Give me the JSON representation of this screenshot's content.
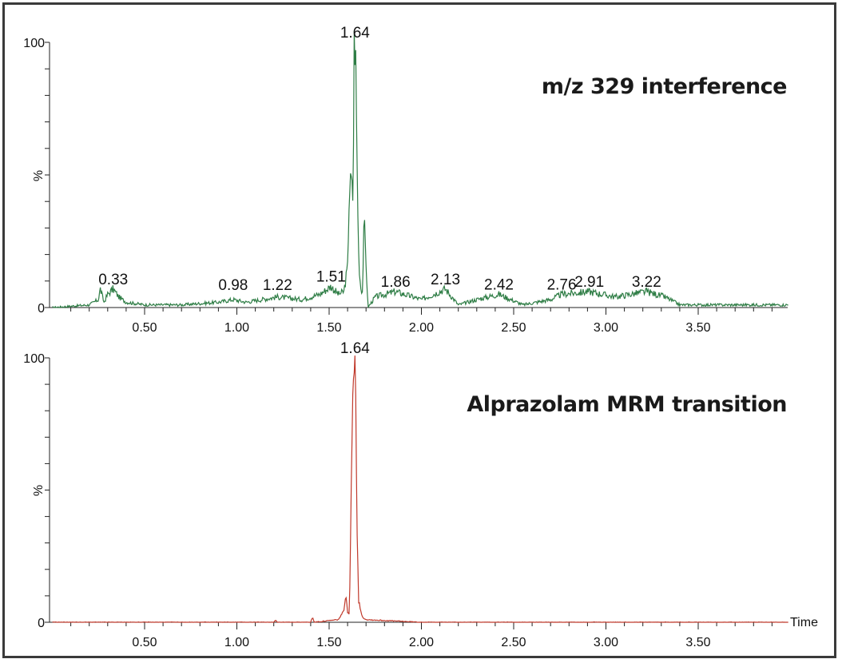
{
  "chart_data": [
    {
      "type": "line",
      "title": "m/z 329 interference",
      "xlabel": "",
      "ylabel": "%",
      "xlim": [
        0,
        4.0
      ],
      "ylim": [
        0,
        100
      ],
      "x_ticks": [
        "0.50",
        "1.00",
        "1.50",
        "2.00",
        "2.50",
        "3.00",
        "3.50"
      ],
      "y_ticks": [
        "0",
        "100"
      ],
      "color": "#2e7d45",
      "grid": false,
      "peak_labels": [
        {
          "x": 0.33,
          "label": "0.33"
        },
        {
          "x": 0.98,
          "label": "0.98"
        },
        {
          "x": 1.22,
          "label": "1.22"
        },
        {
          "x": 1.51,
          "label": "1.51"
        },
        {
          "x": 1.64,
          "label": "1.64"
        },
        {
          "x": 1.86,
          "label": "1.86"
        },
        {
          "x": 2.13,
          "label": "2.13"
        },
        {
          "x": 2.42,
          "label": "2.42"
        },
        {
          "x": 2.76,
          "label": "2.76"
        },
        {
          "x": 2.91,
          "label": "2.91"
        },
        {
          "x": 3.22,
          "label": "3.22"
        }
      ],
      "series": [
        {
          "name": "m/z 329 interference",
          "x": [
            0.0,
            0.2,
            0.25,
            0.26,
            0.28,
            0.3,
            0.33,
            0.36,
            0.4,
            0.5,
            0.7,
            0.9,
            0.98,
            1.05,
            1.22,
            1.35,
            1.45,
            1.51,
            1.55,
            1.58,
            1.6,
            1.61,
            1.62,
            1.63,
            1.635,
            1.64,
            1.645,
            1.65,
            1.66,
            1.67,
            1.68,
            1.69,
            1.7,
            1.71,
            1.75,
            1.86,
            2.0,
            2.13,
            2.2,
            2.3,
            2.42,
            2.55,
            2.7,
            2.76,
            2.91,
            3.05,
            3.22,
            3.32,
            3.4,
            3.6,
            3.99
          ],
          "y": [
            0,
            1,
            3,
            7,
            2,
            5,
            7,
            4,
            2,
            1,
            1,
            2,
            3,
            2,
            4,
            3,
            5,
            8,
            5,
            6,
            15,
            45,
            48,
            40,
            99,
            100,
            90,
            60,
            20,
            8,
            6,
            33,
            18,
            0,
            4,
            6,
            3,
            7,
            1,
            3,
            5,
            1,
            3,
            5,
            6,
            4,
            6,
            4,
            1,
            1,
            1
          ]
        }
      ]
    },
    {
      "type": "line",
      "title": "Alprazolam MRM transition",
      "xlabel": "Time",
      "ylabel": "%",
      "xlim": [
        0,
        4.0
      ],
      "ylim": [
        0,
        100
      ],
      "x_ticks": [
        "0.50",
        "1.00",
        "1.50",
        "2.00",
        "2.50",
        "3.00",
        "3.50"
      ],
      "y_ticks": [
        "0",
        "100"
      ],
      "color": "#c0392b",
      "grid": false,
      "peak_labels": [
        {
          "x": 1.64,
          "label": "1.64"
        }
      ],
      "series": [
        {
          "name": "Alprazolam MRM transition",
          "x": [
            0.0,
            1.2,
            1.21,
            1.22,
            1.4,
            1.41,
            1.42,
            1.55,
            1.57,
            1.58,
            1.59,
            1.6,
            1.61,
            1.62,
            1.63,
            1.635,
            1.64,
            1.645,
            1.65,
            1.66,
            1.67,
            1.68,
            1.7,
            2.0,
            3.99
          ],
          "y": [
            0,
            0,
            1,
            0,
            0,
            2,
            0,
            1,
            3,
            5,
            10,
            4,
            3,
            50,
            95,
            98,
            100,
            85,
            40,
            8,
            5,
            2,
            1,
            0,
            0
          ]
        }
      ]
    }
  ],
  "panels": {
    "top": {
      "title": "m/z 329 interference",
      "ylabel": "%",
      "y_max_label": "100",
      "y_min_label": "0"
    },
    "bottom": {
      "title": "Alprazolam MRM transition",
      "ylabel": "%",
      "y_max_label": "100",
      "y_min_label": "0",
      "x_axis_label": "Time"
    }
  }
}
